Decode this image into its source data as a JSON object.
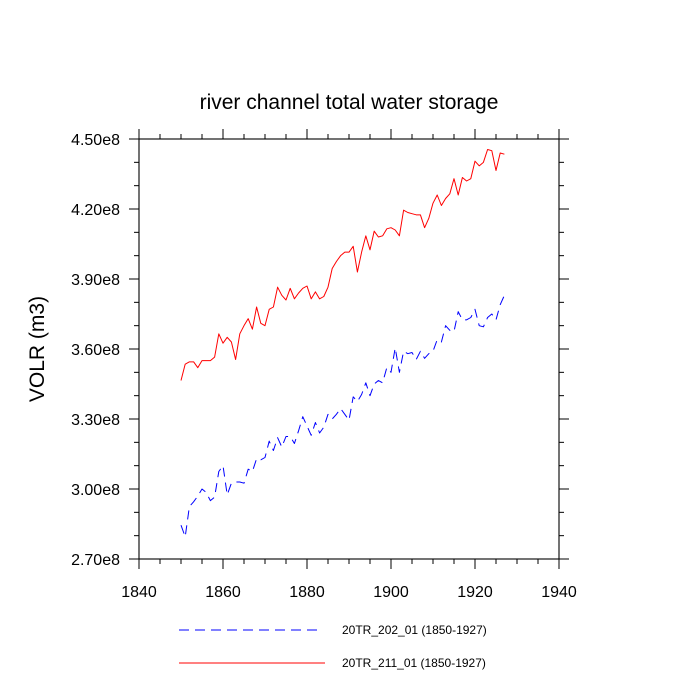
{
  "chart_data": {
    "type": "line",
    "title": "river channel total water storage",
    "xlabel": "",
    "ylabel": "VOLR  (m3)",
    "xlim": [
      1840,
      1940
    ],
    "ylim": [
      270000000,
      450000000
    ],
    "xticks": [
      1840,
      1860,
      1880,
      1900,
      1920,
      1940
    ],
    "xtick_labels": [
      "1840",
      "1860",
      "1880",
      "1900",
      "1920",
      "1940"
    ],
    "yticks": [
      270000000,
      300000000,
      330000000,
      360000000,
      390000000,
      420000000,
      450000000
    ],
    "ytick_labels": [
      "2.70e8",
      "3.00e8",
      "3.30e8",
      "3.60e8",
      "3.90e8",
      "4.20e8",
      "4.50e8"
    ],
    "grid": false,
    "legend_position": "bottom",
    "x": [
      1850,
      1851,
      1852,
      1853,
      1854,
      1855,
      1856,
      1857,
      1858,
      1859,
      1860,
      1861,
      1862,
      1863,
      1864,
      1865,
      1866,
      1867,
      1868,
      1869,
      1870,
      1871,
      1872,
      1873,
      1874,
      1875,
      1876,
      1877,
      1878,
      1879,
      1880,
      1881,
      1882,
      1883,
      1884,
      1885,
      1886,
      1887,
      1888,
      1889,
      1890,
      1891,
      1892,
      1893,
      1894,
      1895,
      1896,
      1897,
      1898,
      1899,
      1900,
      1901,
      1902,
      1903,
      1904,
      1905,
      1906,
      1907,
      1908,
      1909,
      1910,
      1911,
      1912,
      1913,
      1914,
      1915,
      1916,
      1917,
      1918,
      1919,
      1920,
      1921,
      1922,
      1923,
      1924,
      1925,
      1926,
      1927
    ],
    "series": [
      {
        "name": "20TR_202_01 (1850-1927)",
        "color": "#0000ff",
        "style": "dashed",
        "values": [
          284500000,
          279500000,
          292500000,
          294500000,
          297000000,
          300000000,
          298500000,
          295000000,
          296500000,
          307500000,
          310000000,
          297500000,
          302500000,
          303000000,
          303000000,
          302500000,
          308500000,
          307500000,
          313000000,
          312500000,
          313500000,
          320500000,
          316500000,
          322000000,
          318000000,
          322500000,
          322500000,
          319500000,
          325000000,
          331000000,
          327000000,
          323000000,
          328500000,
          324000000,
          326500000,
          332000000,
          330000000,
          332000000,
          334500000,
          332000000,
          329500000,
          339500000,
          337500000,
          340500000,
          345500000,
          340000000,
          345000000,
          346500000,
          345500000,
          352000000,
          350000000,
          360500000,
          350000000,
          359000000,
          358000000,
          358500000,
          355500000,
          359000000,
          356000000,
          358000000,
          359000000,
          364000000,
          363000000,
          370000000,
          368000000,
          367500000,
          376000000,
          372500000,
          372500000,
          373500000,
          377000000,
          370000000,
          369500000,
          373500000,
          375000000,
          372500000,
          379000000,
          383000000
        ]
      },
      {
        "name": "20TR_211_01 (1850-1927)",
        "color": "#ff0000",
        "style": "solid",
        "values": [
          346500000,
          353500000,
          354500000,
          354500000,
          352000000,
          355000000,
          355000000,
          355000000,
          356500000,
          366500000,
          362500000,
          365000000,
          363000000,
          355500000,
          366500000,
          370000000,
          373000000,
          368500000,
          378000000,
          371000000,
          370000000,
          377000000,
          378000000,
          386500000,
          383000000,
          381000000,
          386000000,
          381500000,
          384000000,
          386000000,
          387000000,
          381500000,
          384500000,
          381500000,
          382500000,
          386500000,
          394500000,
          397500000,
          400000000,
          401500000,
          401500000,
          404000000,
          393000000,
          401500000,
          408500000,
          402500000,
          410500000,
          408000000,
          408500000,
          411500000,
          412000000,
          411000000,
          408500000,
          419500000,
          418500000,
          418000000,
          417500000,
          417500000,
          412000000,
          416000000,
          422500000,
          426000000,
          421500000,
          424500000,
          426500000,
          433000000,
          426000000,
          433500000,
          432000000,
          433000000,
          440500000,
          438500000,
          440000000,
          445500000,
          445000000,
          436500000,
          444000000,
          443500000
        ]
      }
    ]
  }
}
